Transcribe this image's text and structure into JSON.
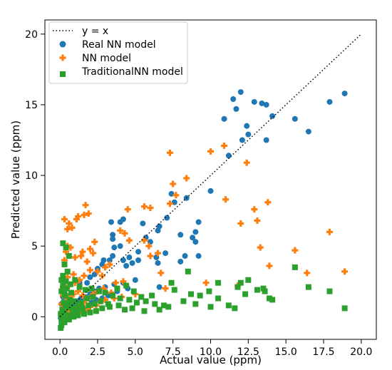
{
  "chart_data": {
    "type": "scatter",
    "xlabel": "Actual value (ppm)",
    "ylabel": "Predicted value (ppm)",
    "xlim": [
      -1.0,
      21.0
    ],
    "ylim": [
      -1.6,
      21.0
    ],
    "xticks": [
      0,
      2.5,
      5,
      7.5,
      10,
      12.5,
      15,
      17.5,
      20
    ],
    "xtick_labels": [
      "0.0",
      "2.5",
      "5.0",
      "7.5",
      "10.0",
      "12.5",
      "15.0",
      "17.5",
      "20.0"
    ],
    "yticks": [
      0,
      5,
      10,
      15,
      20
    ],
    "ytick_labels": [
      "0",
      "5",
      "10",
      "15",
      "20"
    ],
    "grid": false,
    "legend_position": "top-left",
    "reference_line": {
      "label": "y = x",
      "from": [
        0,
        0
      ],
      "to": [
        20,
        20
      ],
      "style": "dotted",
      "color": "#000000"
    },
    "series": [
      {
        "name": "Real NN model",
        "marker": "circle",
        "color": "#1f77b4",
        "points": [
          [
            12.0,
            15.9
          ],
          [
            11.5,
            15.4
          ],
          [
            12.9,
            15.2
          ],
          [
            13.4,
            15.1
          ],
          [
            13.7,
            15.0
          ],
          [
            11.7,
            14.7
          ],
          [
            10.9,
            14.0
          ],
          [
            12.4,
            13.5
          ],
          [
            14.1,
            14.2
          ],
          [
            15.6,
            14.0
          ],
          [
            16.5,
            13.1
          ],
          [
            17.9,
            15.2
          ],
          [
            18.9,
            15.8
          ],
          [
            12.5,
            12.9
          ],
          [
            12.1,
            12.5
          ],
          [
            13.7,
            12.5
          ],
          [
            11.2,
            11.4
          ],
          [
            7.4,
            8.7
          ],
          [
            7.6,
            8.1
          ],
          [
            8.4,
            8.4
          ],
          [
            10.0,
            8.9
          ],
          [
            7.1,
            7.0
          ],
          [
            6.6,
            6.4
          ],
          [
            6.5,
            6.1
          ],
          [
            9.2,
            6.7
          ],
          [
            9.0,
            6.0
          ],
          [
            8.8,
            5.6
          ],
          [
            9.0,
            5.3
          ],
          [
            8.0,
            5.8
          ],
          [
            5.5,
            6.6
          ],
          [
            5.7,
            5.6
          ],
          [
            6.0,
            5.3
          ],
          [
            4.2,
            6.9
          ],
          [
            4.0,
            6.7
          ],
          [
            3.4,
            6.7
          ],
          [
            3.5,
            5.8
          ],
          [
            3.5,
            5.5
          ],
          [
            3.6,
            4.9
          ],
          [
            3.5,
            4.3
          ],
          [
            4.0,
            5.0
          ],
          [
            3.3,
            4.0
          ],
          [
            2.9,
            4.0
          ],
          [
            2.8,
            3.7
          ],
          [
            2.5,
            3.4
          ],
          [
            2.3,
            3.0
          ],
          [
            2.0,
            2.8
          ],
          [
            1.8,
            2.4
          ],
          [
            1.3,
            2.4
          ],
          [
            5.2,
            4.6
          ],
          [
            4.6,
            4.2
          ],
          [
            4.2,
            4.0
          ],
          [
            4.4,
            3.6
          ],
          [
            4.8,
            3.8
          ],
          [
            5.2,
            4.0
          ],
          [
            6.5,
            3.8
          ],
          [
            6.4,
            4.2
          ],
          [
            7.0,
            4.5
          ],
          [
            8.3,
            4.3
          ],
          [
            9.2,
            4.3
          ],
          [
            8.0,
            3.9
          ],
          [
            6.6,
            2.1
          ],
          [
            5.0,
            2.6
          ],
          [
            4.2,
            2.4
          ],
          [
            3.6,
            2.3
          ],
          [
            3.0,
            2.1
          ],
          [
            2.6,
            2.0
          ],
          [
            2.3,
            1.8
          ],
          [
            2.0,
            1.6
          ],
          [
            1.7,
            1.4
          ],
          [
            1.4,
            1.3
          ],
          [
            1.2,
            1.1
          ],
          [
            1.0,
            0.9
          ],
          [
            0.9,
            0.8
          ],
          [
            0.7,
            0.6
          ],
          [
            0.6,
            0.5
          ],
          [
            0.5,
            0.4
          ],
          [
            0.4,
            0.3
          ],
          [
            0.3,
            0.2
          ],
          [
            0.2,
            0.1
          ],
          [
            0.1,
            0.0
          ],
          [
            0.05,
            -0.1
          ],
          [
            0.15,
            0.4
          ],
          [
            0.25,
            0.6
          ],
          [
            0.35,
            0.8
          ],
          [
            0.45,
            1.0
          ],
          [
            0.55,
            0.2
          ],
          [
            0.65,
            0.3
          ],
          [
            0.75,
            1.2
          ],
          [
            0.85,
            0.1
          ],
          [
            0.1,
            0.9
          ],
          [
            0.2,
            1.4
          ],
          [
            0.3,
            -0.2
          ],
          [
            1.1,
            0.6
          ],
          [
            1.3,
            0.8
          ],
          [
            1.5,
            1.0
          ],
          [
            1.6,
            0.5
          ],
          [
            2.1,
            1.0
          ],
          [
            2.4,
            1.2
          ],
          [
            2.8,
            1.3
          ],
          [
            3.2,
            1.5
          ],
          [
            3.8,
            1.8
          ],
          [
            4.5,
            2.0
          ]
        ]
      },
      {
        "name": "NN model",
        "marker": "plus",
        "color": "#ff7f0e",
        "points": [
          [
            7.3,
            11.6
          ],
          [
            10.0,
            11.7
          ],
          [
            10.9,
            12.1
          ],
          [
            12.4,
            10.9
          ],
          [
            11.0,
            8.3
          ],
          [
            12.9,
            7.6
          ],
          [
            13.8,
            8.1
          ],
          [
            12.0,
            6.6
          ],
          [
            13.1,
            6.8
          ],
          [
            13.3,
            4.9
          ],
          [
            15.6,
            4.7
          ],
          [
            17.9,
            6.0
          ],
          [
            18.9,
            3.2
          ],
          [
            16.4,
            3.1
          ],
          [
            13.9,
            3.6
          ],
          [
            7.5,
            9.4
          ],
          [
            8.4,
            9.8
          ],
          [
            7.7,
            8.6
          ],
          [
            7.3,
            8.0
          ],
          [
            5.6,
            7.8
          ],
          [
            4.5,
            7.6
          ],
          [
            1.7,
            7.9
          ],
          [
            1.9,
            7.3
          ],
          [
            1.2,
            7.1
          ],
          [
            1.1,
            6.9
          ],
          [
            1.6,
            7.2
          ],
          [
            0.6,
            6.6
          ],
          [
            0.5,
            6.2
          ],
          [
            0.8,
            6.3
          ],
          [
            0.3,
            6.9
          ],
          [
            6.0,
            7.7
          ],
          [
            5.6,
            5.4
          ],
          [
            5.9,
            5.0
          ],
          [
            6.0,
            4.3
          ],
          [
            6.5,
            4.5
          ],
          [
            4.3,
            5.9
          ],
          [
            4.6,
            5.4
          ],
          [
            4.0,
            6.1
          ],
          [
            2.3,
            5.3
          ],
          [
            2.2,
            4.5
          ],
          [
            2.0,
            4.8
          ],
          [
            1.8,
            3.9
          ],
          [
            1.4,
            4.3
          ],
          [
            1.5,
            4.6
          ],
          [
            1.0,
            4.2
          ],
          [
            0.7,
            4.9
          ],
          [
            0.5,
            5.0
          ],
          [
            0.4,
            4.6
          ],
          [
            0.3,
            4.0
          ],
          [
            3.0,
            3.5
          ],
          [
            3.3,
            3.7
          ],
          [
            2.5,
            3.2
          ],
          [
            2.0,
            3.3
          ],
          [
            2.8,
            2.9
          ],
          [
            1.6,
            2.9
          ],
          [
            1.3,
            2.6
          ],
          [
            1.0,
            2.4
          ],
          [
            0.9,
            3.0
          ],
          [
            0.6,
            2.2
          ],
          [
            0.5,
            2.8
          ],
          [
            0.3,
            2.5
          ],
          [
            0.2,
            2.1
          ],
          [
            3.7,
            2.4
          ],
          [
            4.2,
            2.5
          ],
          [
            3.4,
            1.7
          ],
          [
            2.9,
            2.0
          ],
          [
            2.5,
            1.8
          ],
          [
            2.2,
            1.6
          ],
          [
            1.9,
            1.3
          ],
          [
            1.5,
            1.5
          ],
          [
            1.2,
            1.8
          ],
          [
            0.9,
            1.6
          ],
          [
            0.8,
            1.2
          ],
          [
            0.6,
            1.4
          ],
          [
            0.4,
            1.1
          ],
          [
            0.2,
            1.5
          ],
          [
            0.1,
            0.9
          ],
          [
            0.3,
            0.6
          ],
          [
            0.5,
            0.4
          ],
          [
            0.7,
            0.7
          ],
          [
            1.0,
            0.5
          ],
          [
            1.3,
            0.9
          ],
          [
            1.6,
            1.0
          ],
          [
            2.0,
            0.7
          ],
          [
            2.4,
            0.8
          ],
          [
            2.7,
            1.1
          ],
          [
            3.0,
            1.2
          ],
          [
            3.6,
            1.3
          ],
          [
            4.1,
            1.4
          ],
          [
            5.0,
            1.6
          ],
          [
            9.7,
            2.4
          ],
          [
            11.8,
            2.2
          ],
          [
            6.7,
            3.1
          ],
          [
            7.0,
            2.0
          ],
          [
            0.1,
            0.2
          ],
          [
            0.2,
            -0.1
          ],
          [
            0.4,
            0.1
          ],
          [
            0.6,
            0.3
          ],
          [
            0.9,
            0.2
          ],
          [
            1.1,
            0.1
          ],
          [
            1.4,
            0.4
          ],
          [
            1.8,
            0.5
          ]
        ]
      },
      {
        "name": "TraditionalNN model",
        "marker": "square",
        "color": "#2ca02c",
        "points": [
          [
            0.2,
            5.2
          ],
          [
            0.4,
            4.9
          ],
          [
            0.6,
            4.3
          ],
          [
            0.3,
            3.7
          ],
          [
            0.5,
            3.2
          ],
          [
            0.2,
            2.9
          ],
          [
            0.1,
            2.6
          ],
          [
            0.4,
            2.5
          ],
          [
            0.7,
            2.3
          ],
          [
            1.0,
            2.6
          ],
          [
            1.3,
            2.1
          ],
          [
            1.7,
            1.9
          ],
          [
            2.1,
            2.0
          ],
          [
            2.6,
            1.8
          ],
          [
            3.0,
            1.7
          ],
          [
            3.5,
            1.5
          ],
          [
            4.0,
            1.3
          ],
          [
            4.6,
            1.2
          ],
          [
            5.1,
            1.0
          ],
          [
            5.7,
            1.1
          ],
          [
            6.3,
            0.9
          ],
          [
            6.9,
            0.8
          ],
          [
            7.6,
            1.9
          ],
          [
            8.2,
            1.1
          ],
          [
            8.7,
            1.6
          ],
          [
            9.3,
            1.5
          ],
          [
            9.9,
            1.8
          ],
          [
            10.5,
            1.3
          ],
          [
            11.2,
            0.8
          ],
          [
            11.6,
            0.6
          ],
          [
            12.0,
            2.4
          ],
          [
            12.5,
            2.6
          ],
          [
            13.1,
            1.9
          ],
          [
            13.6,
            1.8
          ],
          [
            13.9,
            1.3
          ],
          [
            14.1,
            1.2
          ],
          [
            15.6,
            3.5
          ],
          [
            16.5,
            2.1
          ],
          [
            17.9,
            1.8
          ],
          [
            18.9,
            0.6
          ],
          [
            8.5,
            3.2
          ],
          [
            7.4,
            2.4
          ],
          [
            10.5,
            2.4
          ],
          [
            11.8,
            2.1
          ],
          [
            12.3,
            1.6
          ],
          [
            13.5,
            2.0
          ],
          [
            10.0,
            0.7
          ],
          [
            9.0,
            0.9
          ],
          [
            7.2,
            0.7
          ],
          [
            6.1,
            1.5
          ],
          [
            5.4,
            1.4
          ],
          [
            4.9,
            1.8
          ],
          [
            4.4,
            2.2
          ],
          [
            3.8,
            2.0
          ],
          [
            3.2,
            0.9
          ],
          [
            2.8,
            0.6
          ],
          [
            2.4,
            0.4
          ],
          [
            2.0,
            0.3
          ],
          [
            1.6,
            0.2
          ],
          [
            1.2,
            0.1
          ],
          [
            0.9,
            0.0
          ],
          [
            0.6,
            -0.2
          ],
          [
            0.3,
            -0.4
          ],
          [
            0.1,
            -0.6
          ],
          [
            0.15,
            0.5
          ],
          [
            0.25,
            1.0
          ],
          [
            0.35,
            1.5
          ],
          [
            0.45,
            2.0
          ],
          [
            0.55,
            0.7
          ],
          [
            0.65,
            1.2
          ],
          [
            0.75,
            1.7
          ],
          [
            0.85,
            0.4
          ],
          [
            0.95,
            1.1
          ],
          [
            1.1,
            0.8
          ],
          [
            1.4,
            1.0
          ],
          [
            1.8,
            1.3
          ],
          [
            2.2,
            1.4
          ],
          [
            2.7,
            1.1
          ],
          [
            3.3,
            0.7
          ],
          [
            3.9,
            0.8
          ],
          [
            4.3,
            0.5
          ],
          [
            4.8,
            0.6
          ],
          [
            5.6,
            0.4
          ],
          [
            6.6,
            0.5
          ],
          [
            0.05,
            0.2
          ],
          [
            0.1,
            -0.2
          ],
          [
            0.2,
            0.1
          ],
          [
            0.3,
            0.3
          ],
          [
            0.4,
            -0.1
          ],
          [
            0.5,
            0.1
          ],
          [
            0.1,
            1.8
          ],
          [
            0.2,
            2.2
          ],
          [
            0.3,
            1.6
          ],
          [
            0.4,
            0.8
          ],
          [
            0.6,
            0.9
          ],
          [
            0.8,
            0.6
          ],
          [
            1.0,
            0.4
          ],
          [
            1.2,
            0.5
          ],
          [
            1.5,
            0.6
          ],
          [
            1.9,
            0.8
          ],
          [
            2.3,
            0.9
          ],
          [
            0.05,
            -0.8
          ]
        ]
      }
    ]
  }
}
